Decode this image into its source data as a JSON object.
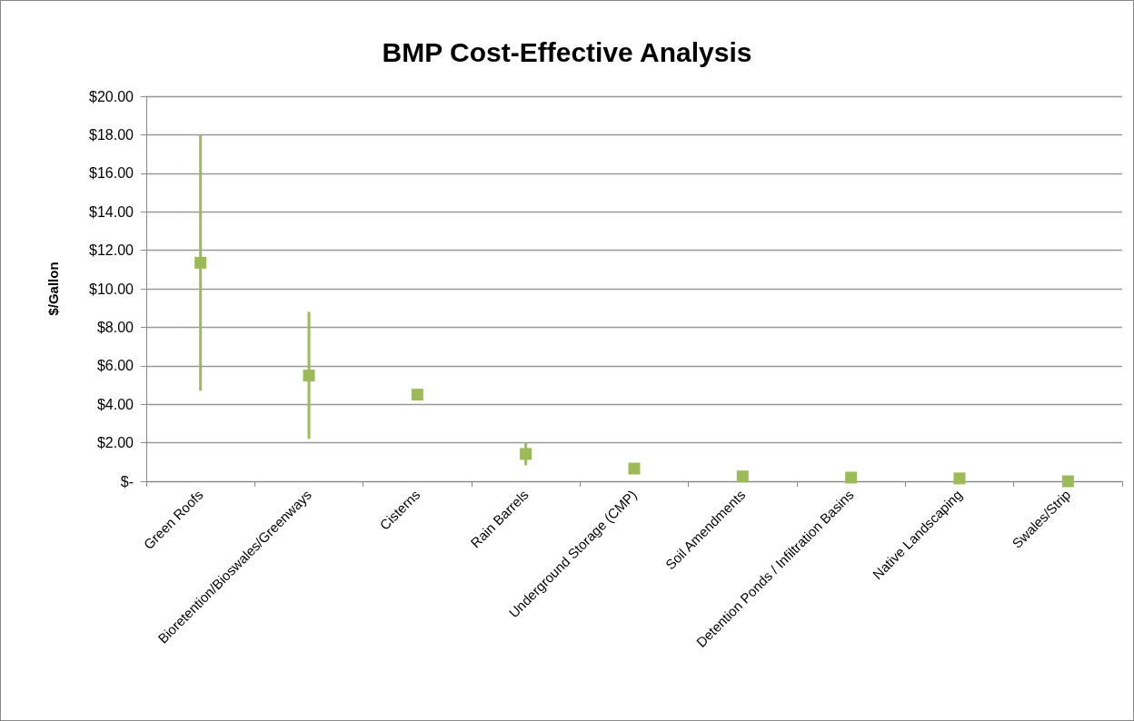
{
  "chart_data": {
    "type": "scatter",
    "title": "BMP Cost-Effective Analysis",
    "ylabel": "$/Gallon",
    "categories": [
      "Green Roofs",
      "Bioretention/Bioswales/Greenways",
      "Cisterns",
      "Rain Barrels",
      "Underground Storage (CMP)",
      "Soil Amendments",
      "Detention Ponds / Infiltration Basins",
      "Native Landscaping",
      "Swales/Strip"
    ],
    "values": [
      11.35,
      5.49,
      4.5,
      1.42,
      0.66,
      0.25,
      0.19,
      0.15,
      0.0
    ],
    "errors": [
      [
        4.7,
        18.0
      ],
      [
        2.2,
        8.8
      ],
      null,
      [
        0.83,
        2.03
      ],
      null,
      null,
      null,
      null,
      null
    ],
    "color": "#9bbb59",
    "marker": "square",
    "grid": "y",
    "ylim": [
      0,
      20
    ],
    "yticks": [
      {
        "value": 0,
        "label": "$-"
      },
      {
        "value": 2,
        "label": "$2.00"
      },
      {
        "value": 4,
        "label": "$4.00"
      },
      {
        "value": 6,
        "label": "$6.00"
      },
      {
        "value": 8,
        "label": "$8.00"
      },
      {
        "value": 10,
        "label": "$10.00"
      },
      {
        "value": 12,
        "label": "$12.00"
      },
      {
        "value": 14,
        "label": "$14.00"
      },
      {
        "value": 16,
        "label": "$16.00"
      },
      {
        "value": 18,
        "label": "$18.00"
      },
      {
        "value": 20,
        "label": "$20.00"
      }
    ]
  }
}
